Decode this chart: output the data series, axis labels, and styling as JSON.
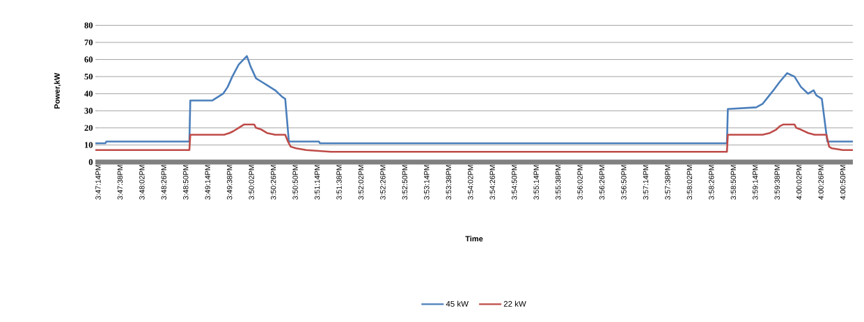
{
  "chart_data": {
    "type": "line",
    "xlabel": "Time",
    "ylabel": "Power,kW",
    "xlim": [
      15.78639,
      16.01694
    ],
    "ylim": [
      0,
      80
    ],
    "yticks": [
      0,
      10,
      20,
      30,
      40,
      50,
      60,
      70,
      80
    ],
    "xticks": [
      {
        "value": 15.78722,
        "label": "3:47:14PM"
      },
      {
        "value": 15.79389,
        "label": "3:47:38PM"
      },
      {
        "value": 15.80056,
        "label": "3:48:02PM"
      },
      {
        "value": 15.80722,
        "label": "3:48:26PM"
      },
      {
        "value": 15.81389,
        "label": "3:48:50PM"
      },
      {
        "value": 15.82056,
        "label": "3:49:14PM"
      },
      {
        "value": 15.82722,
        "label": "3:49:38PM"
      },
      {
        "value": 15.83389,
        "label": "3:50:02PM"
      },
      {
        "value": 15.84056,
        "label": "3:50:26PM"
      },
      {
        "value": 15.84722,
        "label": "3:50:50PM"
      },
      {
        "value": 15.85389,
        "label": "3:51:14PM"
      },
      {
        "value": 15.86056,
        "label": "3:51:38PM"
      },
      {
        "value": 15.86722,
        "label": "3:52:02PM"
      },
      {
        "value": 15.87389,
        "label": "3:52:26PM"
      },
      {
        "value": 15.88056,
        "label": "3:52:50PM"
      },
      {
        "value": 15.88722,
        "label": "3:53:14PM"
      },
      {
        "value": 15.89389,
        "label": "3:53:38PM"
      },
      {
        "value": 15.90056,
        "label": "3:54:02PM"
      },
      {
        "value": 15.90722,
        "label": "3:54:26PM"
      },
      {
        "value": 15.91389,
        "label": "3:54:50PM"
      },
      {
        "value": 15.92056,
        "label": "3:55:14PM"
      },
      {
        "value": 15.92722,
        "label": "3:55:38PM"
      },
      {
        "value": 15.93389,
        "label": "3:56:02PM"
      },
      {
        "value": 15.94056,
        "label": "3:56:26PM"
      },
      {
        "value": 15.94722,
        "label": "3:56:50PM"
      },
      {
        "value": 15.95389,
        "label": "3:57:14PM"
      },
      {
        "value": 15.96056,
        "label": "3:57:38PM"
      },
      {
        "value": 15.96722,
        "label": "3:58:02PM"
      },
      {
        "value": 15.97389,
        "label": "3:58:26PM"
      },
      {
        "value": 15.98056,
        "label": "3:58:50PM"
      },
      {
        "value": 15.98722,
        "label": "3:59:14PM"
      },
      {
        "value": 15.99389,
        "label": "3:59:38PM"
      },
      {
        "value": 16.00056,
        "label": "4:00:02PM"
      },
      {
        "value": 16.00722,
        "label": "4:00:26PM"
      },
      {
        "value": 16.01389,
        "label": "4:00:50PM"
      }
    ],
    "grid": "y",
    "legend": "bottom",
    "marker": "none",
    "line_style": "solid",
    "series": [
      {
        "name": "45 kW",
        "color": "#4a7ebb",
        "x": [
          15.78639,
          15.78944,
          15.78972,
          15.815,
          15.81528,
          15.82194,
          15.82528,
          15.82667,
          15.82806,
          15.83,
          15.8325,
          15.83361,
          15.83528,
          15.83694,
          15.83861,
          15.84111,
          15.84333,
          15.84417,
          15.84528,
          15.85444,
          15.85472,
          15.97861,
          15.97889,
          15.9875,
          15.98944,
          15.99111,
          15.99278,
          15.99472,
          15.99694,
          15.99917,
          16.00111,
          16.00333,
          16.005,
          16.00583,
          16.0075,
          16.00917,
          16.01694
        ],
        "values": [
          11,
          11,
          12,
          12,
          36,
          36,
          40,
          44,
          50,
          57,
          62,
          56,
          49,
          47,
          45,
          42,
          38,
          37,
          12,
          12,
          11,
          11,
          31,
          32,
          34,
          38,
          42,
          47,
          52,
          50,
          44,
          40,
          42,
          39,
          37,
          12,
          12
        ]
      },
      {
        "name": "22 kW",
        "color": "#be4b48",
        "x": [
          15.78639,
          15.815,
          15.81528,
          15.82556,
          15.82722,
          15.82833,
          15.83,
          15.83167,
          15.83472,
          15.83528,
          15.83694,
          15.83861,
          15.84111,
          15.84417,
          15.845,
          15.84583,
          15.8475,
          15.85056,
          15.85806,
          15.97861,
          15.97889,
          15.98944,
          15.99167,
          15.99361,
          15.99472,
          15.99583,
          15.99917,
          15.99972,
          16.00111,
          16.00333,
          16.00528,
          16.00889,
          16.00972,
          16.01056,
          16.01389,
          16.01694
        ],
        "values": [
          7,
          7,
          16,
          16,
          17,
          18,
          20,
          22,
          22,
          20,
          19,
          17,
          16,
          16,
          12,
          9,
          8,
          7,
          6,
          6,
          16,
          16,
          17,
          19,
          21,
          22,
          22,
          20,
          19,
          17,
          16,
          16,
          9,
          8,
          7,
          7
        ]
      }
    ]
  }
}
